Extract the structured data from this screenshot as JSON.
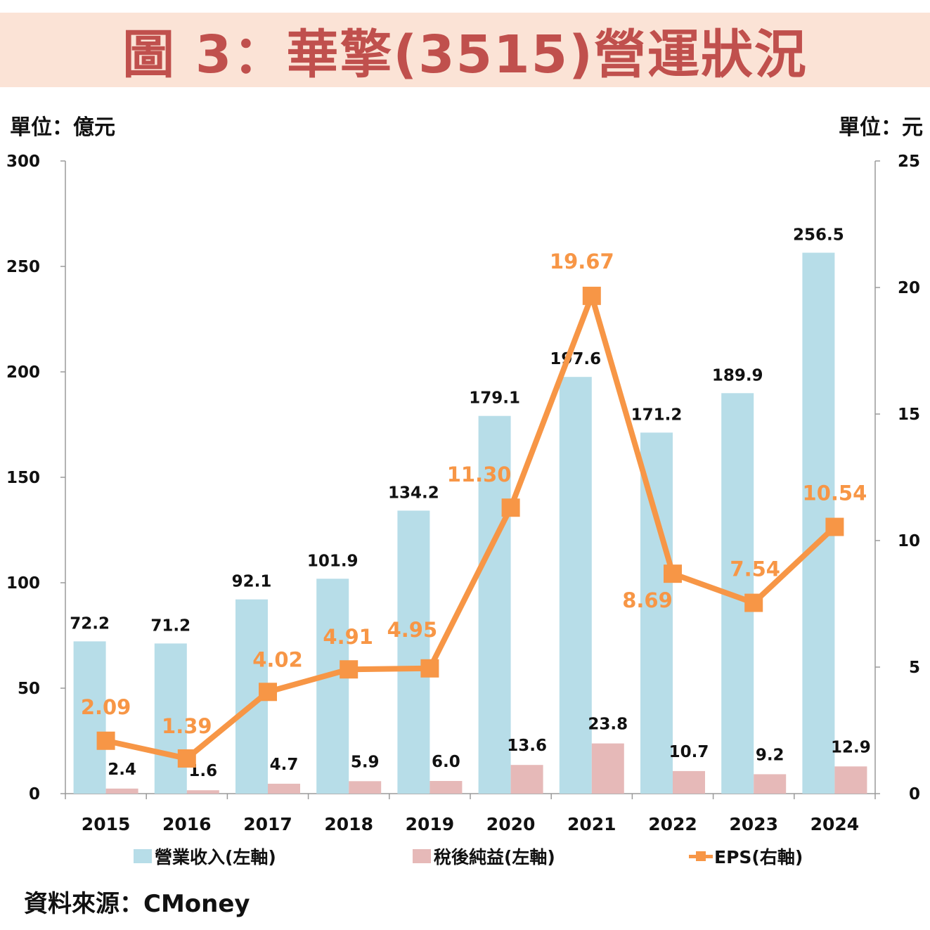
{
  "title": "圖 3：華擎(3515)營運狀況",
  "left_unit": "單位：億元",
  "right_unit": "單位：元",
  "source": "資料來源：CMoney",
  "colors": {
    "revenue": "#b7dde8",
    "net_income": "#e6b9b8",
    "eps": "#f79646",
    "title": "#c0504d",
    "title_bg": "#fbe3d6"
  },
  "chart_data": {
    "type": "bar",
    "categories": [
      "2015",
      "2016",
      "2017",
      "2018",
      "2019",
      "2020",
      "2021",
      "2022",
      "2023",
      "2024"
    ],
    "series": [
      {
        "name": "營業收入(左軸)",
        "type": "bar",
        "axis": "left",
        "values": [
          72.2,
          71.2,
          92.1,
          101.9,
          134.2,
          179.1,
          197.6,
          171.2,
          189.9,
          256.5
        ],
        "labels": [
          "72.2",
          "71.2",
          "92.1",
          "101.9",
          "134.2",
          "179.1",
          "197.6",
          "171.2",
          "189.9",
          "256.5"
        ]
      },
      {
        "name": "稅後純益(左軸)",
        "type": "bar",
        "axis": "left",
        "values": [
          2.4,
          1.6,
          4.7,
          5.9,
          6.0,
          13.6,
          23.8,
          10.7,
          9.2,
          12.9
        ],
        "labels": [
          "2.4",
          "1.6",
          "4.7",
          "5.9",
          "6.0",
          "13.6",
          "23.8",
          "10.7",
          "9.2",
          "12.9"
        ]
      },
      {
        "name": "EPS(右軸)",
        "type": "line",
        "axis": "right",
        "values": [
          2.09,
          1.39,
          4.02,
          4.91,
          4.95,
          11.3,
          19.67,
          8.69,
          7.54,
          10.54
        ],
        "labels": [
          "2.09",
          "1.39",
          "4.02",
          "4.91",
          "4.95",
          "11.30",
          "19.67",
          "8.69",
          "7.54",
          "10.54"
        ]
      }
    ],
    "left_axis": {
      "min": 0,
      "max": 300,
      "ticks": [
        "0",
        "50",
        "100",
        "150",
        "200",
        "250",
        "300"
      ]
    },
    "right_axis": {
      "min": 0,
      "max": 25,
      "ticks": [
        "0",
        "5",
        "10",
        "15",
        "20",
        "25"
      ]
    },
    "legend_position": "bottom"
  }
}
